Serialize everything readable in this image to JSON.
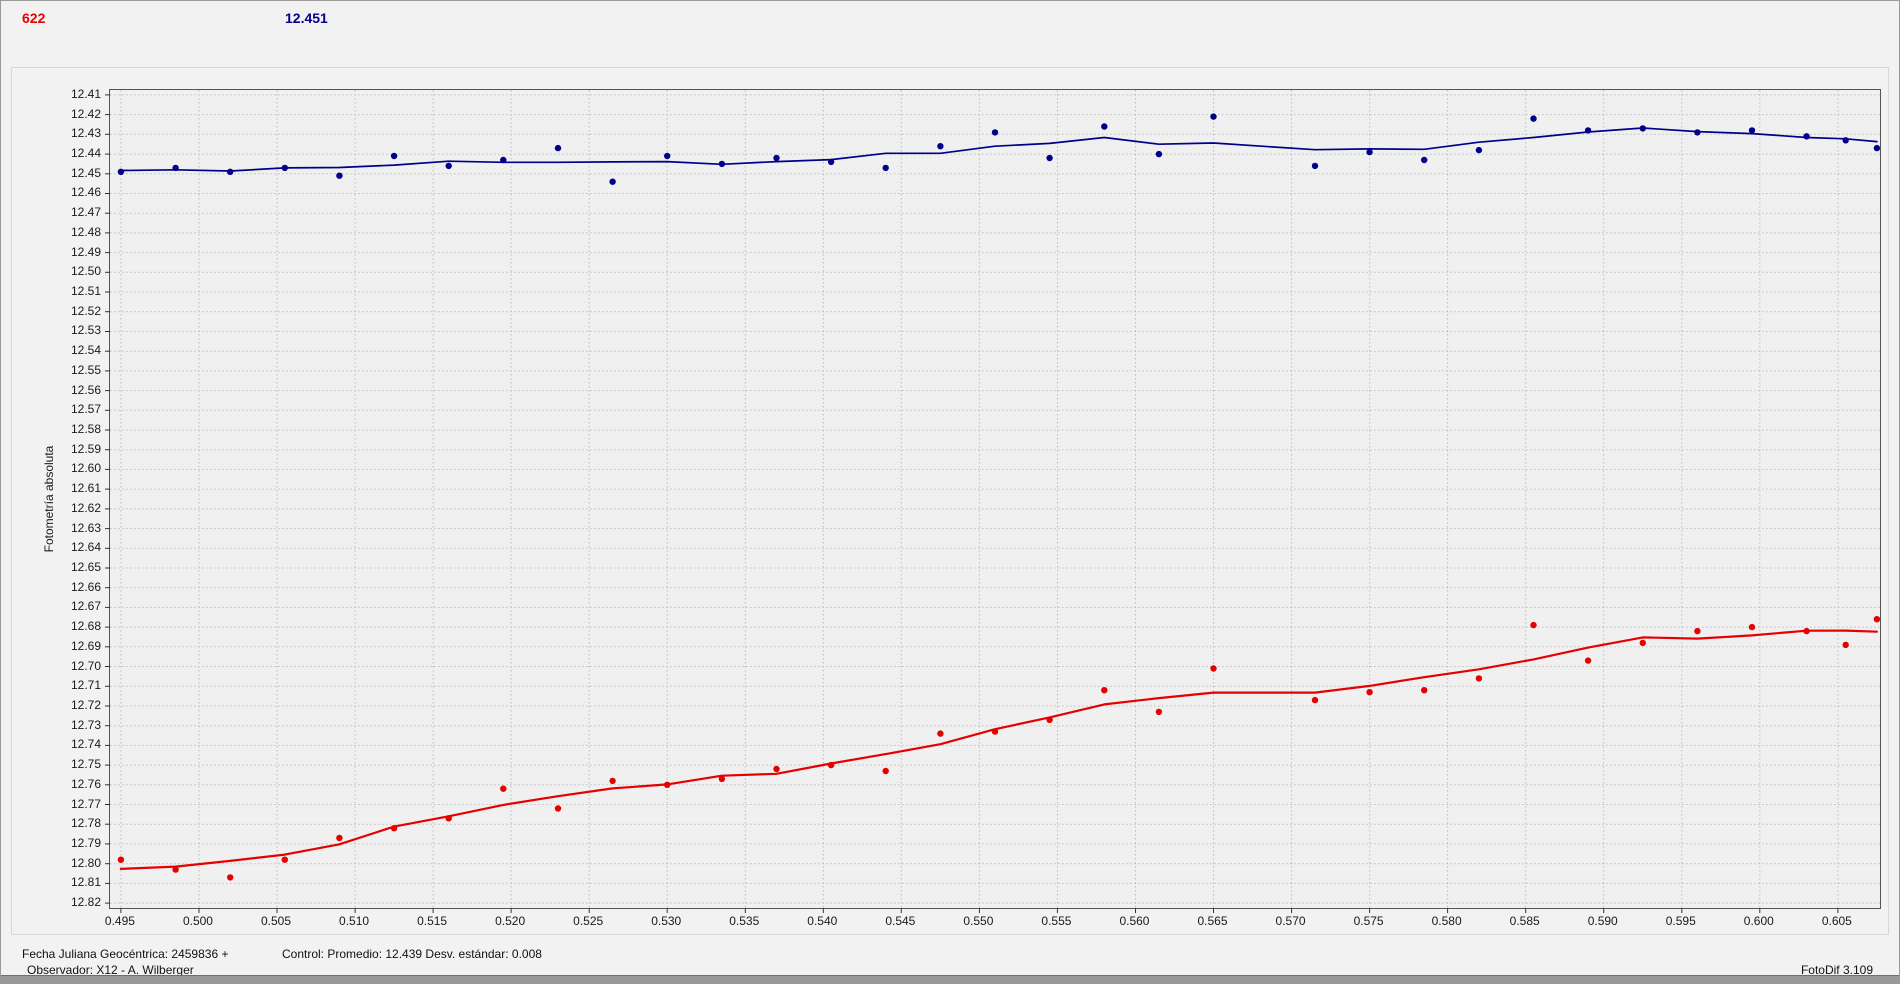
{
  "header": {
    "object_number": "622",
    "magnitude_readout": "12.451"
  },
  "footer": {
    "julian_date": "Fecha Juliana Geocéntrica: 2459836 +",
    "control_stats": "Control: Promedio: 12.439  Desv. estándar: 0.008",
    "observer": "Observador: X12 - A. Wilberger",
    "app_version": "FotoDif 3.109"
  },
  "colors": {
    "background": "#f2f2f2",
    "plot_background": "#f0f0f0",
    "plot_border": "#555555",
    "grid": "#bdbdbd",
    "tick_mark": "#333333",
    "axis_text": "#1a1a1a",
    "object_number": "#e90000",
    "magnitude_readout": "#00008b",
    "series_blue": "#00008b",
    "series_red": "#e60000"
  },
  "chart_data": {
    "type": "scatter",
    "title": "",
    "xlabel": "",
    "ylabel": "Fotometría absoluta",
    "y_axis_inverted": true,
    "grid": "dotted",
    "legend": "none",
    "x_range": [
      0.4943,
      0.6077
    ],
    "y_range": [
      12.4075,
      12.8225
    ],
    "x_ticks": [
      "0.495",
      "0.500",
      "0.505",
      "0.510",
      "0.515",
      "0.520",
      "0.525",
      "0.530",
      "0.535",
      "0.540",
      "0.545",
      "0.550",
      "0.555",
      "0.560",
      "0.565",
      "0.570",
      "0.575",
      "0.580",
      "0.585",
      "0.590",
      "0.595",
      "0.600",
      "0.605"
    ],
    "y_ticks": [
      "12.41",
      "12.42",
      "12.43",
      "12.44",
      "12.45",
      "12.46",
      "12.47",
      "12.48",
      "12.49",
      "12.50",
      "12.51",
      "12.52",
      "12.53",
      "12.54",
      "12.55",
      "12.56",
      "12.57",
      "12.58",
      "12.59",
      "12.60",
      "12.61",
      "12.62",
      "12.63",
      "12.64",
      "12.65",
      "12.66",
      "12.67",
      "12.68",
      "12.69",
      "12.70",
      "12.71",
      "12.72",
      "12.73",
      "12.74",
      "12.75",
      "12.76",
      "12.77",
      "12.78",
      "12.79",
      "12.80",
      "12.81",
      "12.82"
    ],
    "smoothing": "moving-average-5",
    "x": [
      0.495,
      0.4985,
      0.502,
      0.5055,
      0.509,
      0.5125,
      0.516,
      0.5195,
      0.523,
      0.5265,
      0.53,
      0.5335,
      0.537,
      0.5405,
      0.544,
      0.5475,
      0.551,
      0.5545,
      0.558,
      0.5615,
      0.565,
      0.5715,
      0.575,
      0.5785,
      0.582,
      0.5855,
      0.589,
      0.5925,
      0.596,
      0.5995,
      0.603,
      0.6055,
      0.6075
    ],
    "series": [
      {
        "name": "blue",
        "color": "#00008b",
        "point_radius": 3.2,
        "line_width": 1.7,
        "values": [
          12.449,
          12.447,
          12.449,
          12.447,
          12.451,
          12.441,
          12.446,
          12.443,
          12.437,
          12.454,
          12.441,
          12.445,
          12.442,
          12.444,
          12.447,
          12.436,
          12.429,
          12.442,
          12.426,
          12.44,
          12.421,
          12.446,
          12.439,
          12.443,
          12.438,
          12.422,
          12.428,
          12.427,
          12.429,
          12.428,
          12.431,
          12.433,
          12.437
        ]
      },
      {
        "name": "red",
        "color": "#e60000",
        "point_radius": 3.2,
        "line_width": 2.2,
        "values": [
          12.798,
          12.803,
          12.807,
          12.798,
          12.787,
          12.782,
          12.777,
          12.762,
          12.772,
          12.758,
          12.76,
          12.757,
          12.752,
          12.75,
          12.753,
          12.734,
          12.733,
          12.727,
          12.712,
          12.723,
          12.701,
          12.717,
          12.713,
          12.712,
          12.706,
          12.679,
          12.697,
          12.688,
          12.682,
          12.68,
          12.682,
          12.689,
          12.676
        ]
      }
    ]
  }
}
